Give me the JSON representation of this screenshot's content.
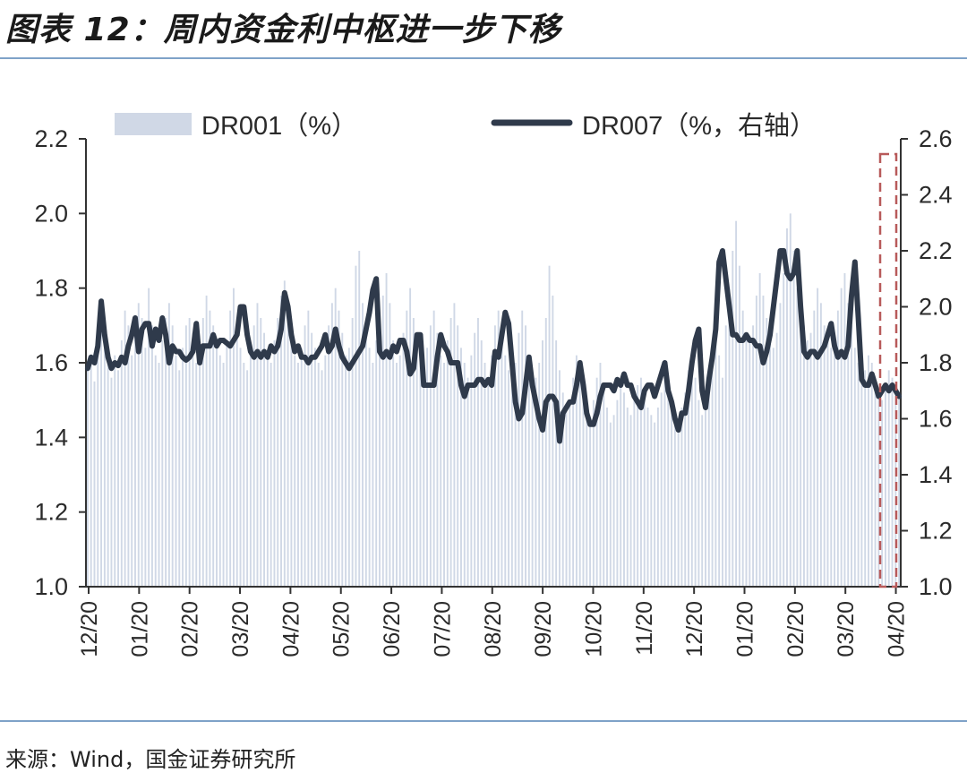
{
  "title": "图表 12：周内资金利中枢进一步下移",
  "source": "来源：Wind，国金证券研究所",
  "chart_data": {
    "type": "bar+line",
    "x_ticks": [
      "12/20",
      "01/20",
      "02/20",
      "03/20",
      "04/20",
      "05/20",
      "06/20",
      "07/20",
      "08/20",
      "09/20",
      "10/20",
      "11/20",
      "12/20",
      "01/20",
      "02/20",
      "03/20",
      "04/20"
    ],
    "left_axis": {
      "ylim": [
        1.0,
        2.2
      ],
      "ticks": [
        "1.0",
        "1.2",
        "1.4",
        "1.6",
        "1.8",
        "2.0",
        "2.2"
      ]
    },
    "right_axis": {
      "ylim": [
        1.0,
        2.6
      ],
      "ticks": [
        "1.0",
        "1.2",
        "1.4",
        "1.6",
        "1.8",
        "2.0",
        "2.2",
        "2.4",
        "2.6"
      ]
    },
    "legend": {
      "bar_label": "DR001（%）",
      "line_label": "DR007（%，右轴）",
      "placement": "top"
    },
    "colors": {
      "bars": "#d0d8e6",
      "line": "#2f3a4b",
      "highlight": "#b85a5a",
      "axis": "#333333"
    },
    "series": [
      {
        "name": "DR001（%）",
        "axis": "left",
        "kind": "bar",
        "values": [
          1.58,
          1.62,
          1.55,
          1.64,
          1.72,
          1.66,
          1.6,
          1.56,
          1.62,
          1.58,
          1.66,
          1.74,
          1.7,
          1.62,
          1.68,
          1.76,
          1.72,
          1.64,
          1.8,
          1.7,
          1.62,
          1.6,
          1.66,
          1.72,
          1.76,
          1.7,
          1.62,
          1.58,
          1.64,
          1.7,
          1.72,
          1.68,
          1.6,
          1.64,
          1.72,
          1.78,
          1.74,
          1.7,
          1.66,
          1.62,
          1.6,
          1.66,
          1.74,
          1.8,
          1.72,
          1.64,
          1.6,
          1.58,
          1.62,
          1.7,
          1.76,
          1.72,
          1.68,
          1.62,
          1.6,
          1.66,
          1.72,
          1.78,
          1.82,
          1.74,
          1.66,
          1.62,
          1.6,
          1.64,
          1.7,
          1.74,
          1.68,
          1.64,
          1.6,
          1.58,
          1.62,
          1.7,
          1.76,
          1.8,
          1.74,
          1.68,
          1.62,
          1.64,
          1.72,
          1.86,
          1.9,
          1.76,
          1.68,
          1.64,
          1.6,
          1.66,
          1.72,
          1.78,
          1.84,
          1.76,
          1.66,
          1.6,
          1.62,
          1.68,
          1.74,
          1.8,
          1.72,
          1.66,
          1.6,
          1.58,
          1.64,
          1.7,
          1.74,
          1.68,
          1.62,
          1.6,
          1.66,
          1.72,
          1.76,
          1.7,
          1.64,
          1.6,
          1.56,
          1.62,
          1.68,
          1.72,
          1.66,
          1.6,
          1.56,
          1.62,
          1.7,
          1.74,
          1.68,
          1.62,
          1.58,
          1.56,
          1.6,
          1.68,
          1.74,
          1.7,
          1.62,
          1.58,
          1.56,
          1.6,
          1.66,
          1.72,
          1.86,
          1.78,
          1.66,
          1.58,
          1.52,
          1.48,
          1.5,
          1.56,
          1.62,
          1.58,
          1.52,
          1.46,
          1.44,
          1.5,
          1.56,
          1.6,
          1.54,
          1.48,
          1.44,
          1.46,
          1.5,
          1.56,
          1.52,
          1.48,
          1.46,
          1.5,
          1.54,
          1.56,
          1.52,
          1.48,
          1.46,
          1.44,
          1.48,
          1.52,
          1.56,
          1.54,
          1.5,
          1.46,
          1.44,
          1.48,
          1.52,
          1.58,
          1.62,
          1.56,
          1.5,
          1.46,
          1.48,
          1.54,
          1.6,
          1.66,
          1.62,
          1.56,
          1.7,
          1.8,
          1.9,
          1.98,
          1.86,
          1.74,
          1.68,
          1.66,
          1.7,
          1.78,
          1.84,
          1.78,
          1.72,
          1.66,
          1.64,
          1.68,
          1.76,
          1.84,
          1.96,
          2.0,
          1.9,
          1.8,
          1.74,
          1.7,
          1.66,
          1.68,
          1.74,
          1.8,
          1.76,
          1.7,
          1.66,
          1.64,
          1.68,
          1.74,
          1.8,
          1.84,
          1.76,
          1.7,
          1.64,
          1.6,
          1.56,
          1.58,
          1.62,
          1.6,
          1.56,
          1.52,
          1.5,
          1.54,
          1.58,
          1.56,
          1.54,
          1.52
        ]
      },
      {
        "name": "DR007（%，右轴）",
        "axis": "right",
        "kind": "line",
        "values": [
          1.78,
          1.82,
          1.8,
          1.86,
          2.02,
          1.9,
          1.82,
          1.78,
          1.8,
          1.79,
          1.82,
          1.8,
          1.86,
          1.9,
          1.96,
          1.84,
          1.92,
          1.94,
          1.94,
          1.86,
          1.92,
          1.88,
          1.96,
          1.9,
          1.8,
          1.86,
          1.84,
          1.84,
          1.82,
          1.81,
          1.82,
          1.84,
          1.94,
          1.8,
          1.86,
          1.86,
          1.86,
          1.9,
          1.86,
          1.88,
          1.88,
          1.87,
          1.86,
          1.88,
          1.9,
          2.0,
          2.0,
          1.9,
          1.84,
          1.82,
          1.84,
          1.82,
          1.84,
          1.82,
          1.86,
          1.84,
          1.86,
          1.92,
          2.05,
          2.0,
          1.9,
          1.84,
          1.86,
          1.82,
          1.82,
          1.8,
          1.82,
          1.82,
          1.84,
          1.86,
          1.9,
          1.84,
          1.86,
          1.92,
          1.86,
          1.82,
          1.8,
          1.78,
          1.8,
          1.82,
          1.84,
          1.86,
          1.92,
          1.98,
          2.06,
          2.1,
          1.84,
          1.82,
          1.84,
          1.82,
          1.86,
          1.84,
          1.88,
          1.88,
          1.84,
          1.76,
          1.78,
          1.9,
          1.9,
          1.72,
          1.72,
          1.72,
          1.72,
          1.82,
          1.9,
          1.86,
          1.84,
          1.8,
          1.8,
          1.8,
          1.72,
          1.68,
          1.72,
          1.72,
          1.72,
          1.74,
          1.74,
          1.72,
          1.74,
          1.72,
          1.84,
          1.82,
          1.9,
          1.98,
          1.94,
          1.8,
          1.66,
          1.6,
          1.62,
          1.72,
          1.82,
          1.72,
          1.66,
          1.6,
          1.56,
          1.66,
          1.68,
          1.68,
          1.66,
          1.52,
          1.62,
          1.64,
          1.66,
          1.66,
          1.72,
          1.8,
          1.72,
          1.62,
          1.58,
          1.58,
          1.62,
          1.68,
          1.72,
          1.72,
          1.72,
          1.7,
          1.74,
          1.72,
          1.76,
          1.72,
          1.72,
          1.68,
          1.66,
          1.64,
          1.7,
          1.72,
          1.72,
          1.68,
          1.72,
          1.76,
          1.8,
          1.7,
          1.66,
          1.6,
          1.56,
          1.62,
          1.62,
          1.7,
          1.8,
          1.88,
          1.92,
          1.7,
          1.64,
          1.74,
          1.82,
          1.92,
          2.16,
          2.2,
          2.1,
          2.0,
          1.9,
          1.9,
          1.88,
          1.88,
          1.9,
          1.88,
          1.88,
          1.86,
          1.86,
          1.8,
          1.84,
          1.9,
          2.0,
          2.1,
          2.2,
          2.2,
          2.12,
          2.1,
          2.12,
          2.2,
          2.0,
          1.84,
          1.82,
          1.84,
          1.84,
          1.82,
          1.84,
          1.86,
          1.9,
          1.94,
          1.86,
          1.82,
          1.84,
          1.82,
          1.86,
          2.04,
          2.16,
          1.96,
          1.74,
          1.72,
          1.72,
          1.76,
          1.72,
          1.68,
          1.7,
          1.72,
          1.7,
          1.72,
          1.7,
          1.68
        ]
      }
    ]
  }
}
